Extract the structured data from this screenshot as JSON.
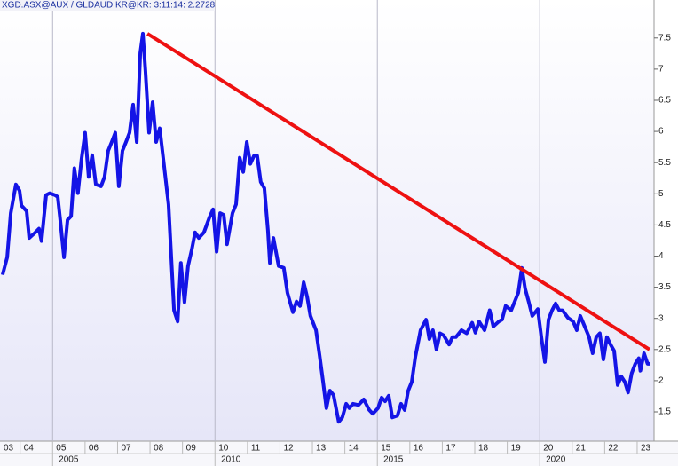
{
  "chart_data": {
    "type": "line",
    "title": "XGD.ASX@AUX / GLDAUD.KR@KR: 3:11:14:   2.2728",
    "series": [
      {
        "color": "#1414e6",
        "x": [
          2003.46,
          2003.6,
          2003.71,
          2003.87,
          2003.98,
          2004.04,
          2004.2,
          2004.28,
          2004.47,
          2004.58,
          2004.66,
          2004.8,
          2004.91,
          2005.07,
          2005.16,
          2005.24,
          2005.35,
          2005.46,
          2005.57,
          2005.67,
          2005.78,
          2005.89,
          2006.0,
          2006.11,
          2006.22,
          2006.33,
          2006.49,
          2006.6,
          2006.71,
          2006.82,
          2006.93,
          2007.04,
          2007.15,
          2007.26,
          2007.37,
          2007.48,
          2007.59,
          2007.7,
          2007.78,
          2007.86,
          2007.97,
          2008.08,
          2008.19,
          2008.3,
          2008.41,
          2008.57,
          2008.74,
          2008.85,
          2008.95,
          2009.06,
          2009.17,
          2009.28,
          2009.39,
          2009.5,
          2009.66,
          2009.83,
          2009.94,
          2010.05,
          2010.16,
          2010.27,
          2010.37,
          2010.54,
          2010.65,
          2010.76,
          2010.87,
          2010.98,
          2011.09,
          2011.2,
          2011.3,
          2011.41,
          2011.52,
          2011.63,
          2011.69,
          2011.8,
          2011.96,
          2012.12,
          2012.23,
          2012.4,
          2012.51,
          2012.62,
          2012.73,
          2012.84,
          2012.94,
          2013.11,
          2013.22,
          2013.33,
          2013.43,
          2013.54,
          2013.65,
          2013.81,
          2013.92,
          2014.04,
          2014.14,
          2014.25,
          2014.42,
          2014.58,
          2014.75,
          2014.86,
          2015.02,
          2015.13,
          2015.24,
          2015.35,
          2015.46,
          2015.62,
          2015.73,
          2015.84,
          2015.95,
          2016.06,
          2016.17,
          2016.33,
          2016.5,
          2016.6,
          2016.71,
          2016.82,
          2016.93,
          2017.04,
          2017.21,
          2017.31,
          2017.42,
          2017.59,
          2017.75,
          2017.92,
          2018.02,
          2018.13,
          2018.3,
          2018.46,
          2018.57,
          2018.74,
          2018.84,
          2018.95,
          2019.12,
          2019.23,
          2019.34,
          2019.45,
          2019.55,
          2019.66,
          2019.77,
          2019.94,
          2020.05,
          2020.16,
          2020.27,
          2020.38,
          2020.49,
          2020.6,
          2020.7,
          2020.87,
          2021.03,
          2021.14,
          2021.25,
          2021.36,
          2021.52,
          2021.63,
          2021.74,
          2021.85,
          2021.96,
          2022.07,
          2022.18,
          2022.29,
          2022.4,
          2022.51,
          2022.62,
          2022.72,
          2022.83,
          2022.94,
          2023.05,
          2023.1,
          2023.21,
          2023.32,
          2023.41
        ],
        "values": [
          3.7,
          3.98,
          4.69,
          5.15,
          5.05,
          4.81,
          4.72,
          4.29,
          4.38,
          4.44,
          4.24,
          4.98,
          5.01,
          4.98,
          4.95,
          4.55,
          3.98,
          4.58,
          4.64,
          5.41,
          5.01,
          5.56,
          5.98,
          5.27,
          5.62,
          5.15,
          5.12,
          5.27,
          5.69,
          5.83,
          5.98,
          5.12,
          5.69,
          5.83,
          5.98,
          6.43,
          5.83,
          7.26,
          7.57,
          6.97,
          5.98,
          6.47,
          5.83,
          6.05,
          5.55,
          4.83,
          3.13,
          2.95,
          3.89,
          3.26,
          3.84,
          4.09,
          4.38,
          4.29,
          4.38,
          4.62,
          4.75,
          4.07,
          4.69,
          4.66,
          4.19,
          4.69,
          4.83,
          5.58,
          5.35,
          5.83,
          5.48,
          5.61,
          5.61,
          5.19,
          5.09,
          4.41,
          3.89,
          4.29,
          3.84,
          3.81,
          3.41,
          3.1,
          3.27,
          3.2,
          3.58,
          3.34,
          3.04,
          2.81,
          2.41,
          1.98,
          1.56,
          1.84,
          1.77,
          1.34,
          1.41,
          1.63,
          1.56,
          1.63,
          1.61,
          1.7,
          1.53,
          1.47,
          1.56,
          1.73,
          1.67,
          1.76,
          1.41,
          1.44,
          1.63,
          1.53,
          1.84,
          1.98,
          2.38,
          2.81,
          2.98,
          2.67,
          2.81,
          2.5,
          2.76,
          2.73,
          2.58,
          2.7,
          2.7,
          2.81,
          2.76,
          2.93,
          2.77,
          2.95,
          2.81,
          3.13,
          2.87,
          2.95,
          2.98,
          3.2,
          3.13,
          3.27,
          3.41,
          3.81,
          3.48,
          3.27,
          3.04,
          3.15,
          2.7,
          2.3,
          2.98,
          3.13,
          3.24,
          3.13,
          3.13,
          3.01,
          2.95,
          2.81,
          3.04,
          2.9,
          2.7,
          2.44,
          2.7,
          2.76,
          2.34,
          2.7,
          2.58,
          2.48,
          1.93,
          2.07,
          1.98,
          1.81,
          2.12,
          2.27,
          2.36,
          2.16,
          2.44,
          2.27,
          2.27
        ]
      }
    ],
    "trendline": {
      "color": "#ee1111",
      "x": [
        2007.92,
        2023.38
      ],
      "values": [
        7.57,
        2.5
      ]
    },
    "xlim": [
      2003.38,
      2023.52
    ],
    "ylim": [
      1.03,
      7.91
    ],
    "yticks": [
      1.5,
      2,
      2.5,
      3,
      3.5,
      4,
      4.5,
      5,
      5.5,
      6,
      6.5,
      7,
      7.5
    ],
    "xticks": [
      {
        "value": 2003,
        "label": "03"
      },
      {
        "value": 2004,
        "label": "04"
      },
      {
        "value": 2005,
        "label": "05"
      },
      {
        "value": 2006,
        "label": "06"
      },
      {
        "value": 2007,
        "label": "07"
      },
      {
        "value": 2008,
        "label": "08"
      },
      {
        "value": 2009,
        "label": "09"
      },
      {
        "value": 2010,
        "label": "10"
      },
      {
        "value": 2011,
        "label": "11"
      },
      {
        "value": 2012,
        "label": "12"
      },
      {
        "value": 2013,
        "label": "13"
      },
      {
        "value": 2014,
        "label": "14"
      },
      {
        "value": 2015,
        "label": "15"
      },
      {
        "value": 2016,
        "label": "16"
      },
      {
        "value": 2017,
        "label": "17"
      },
      {
        "value": 2018,
        "label": "18"
      },
      {
        "value": 2019,
        "label": "19"
      },
      {
        "value": 2020,
        "label": "20"
      },
      {
        "value": 2021,
        "label": "21"
      },
      {
        "value": 2022,
        "label": "22"
      },
      {
        "value": 2023,
        "label": "23"
      }
    ],
    "major_xticks": [
      {
        "value": 2005,
        "label": "2005"
      },
      {
        "value": 2010,
        "label": "2010"
      },
      {
        "value": 2015,
        "label": "2015"
      },
      {
        "value": 2020,
        "label": "2020"
      }
    ]
  }
}
